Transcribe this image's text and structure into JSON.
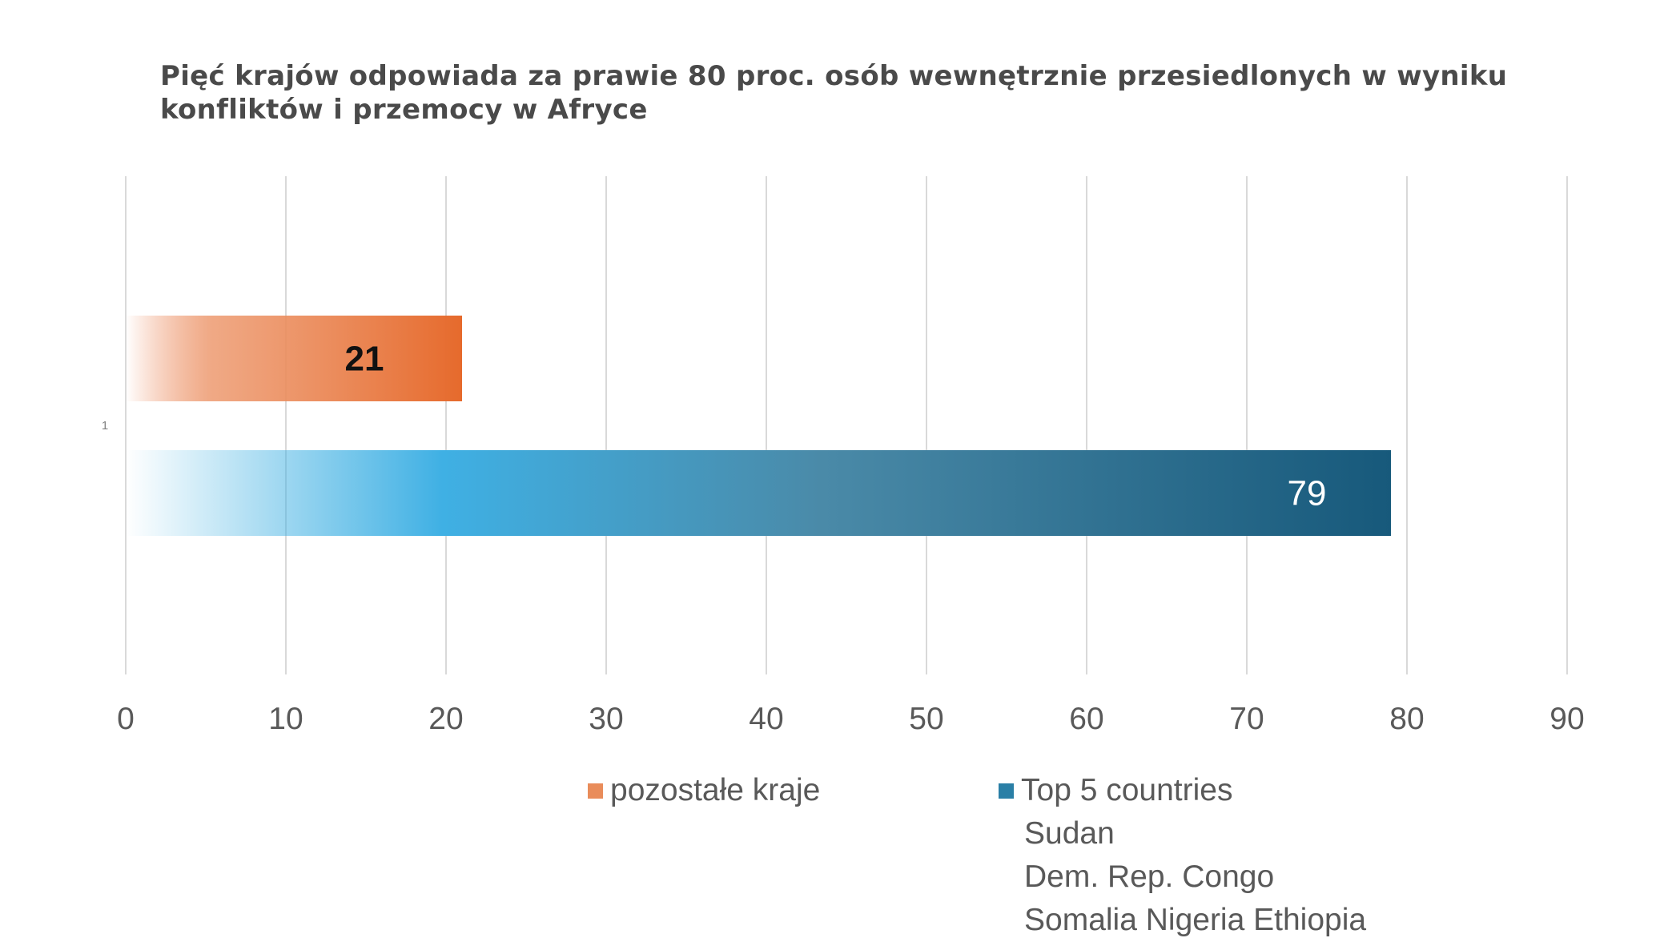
{
  "chart_data": {
    "type": "bar",
    "orientation": "horizontal",
    "title": "Pięć krajów odpowiada  za prawie 80 proc. osób wewnętrznie przesiedlonych w wyniku konfliktów i przemocy w Afryce",
    "category_label": "1",
    "categories": [
      "1"
    ],
    "series": [
      {
        "name": "pozostałe kraje",
        "values": [
          21
        ],
        "color": "#e8703a",
        "data_label": "21"
      },
      {
        "name": "Top 5 countries",
        "name_extra_lines": [
          "Sudan",
          "Dem. Rep. Congo",
          "Somalia Nigeria Ethiopia"
        ],
        "values": [
          79
        ],
        "color": "#1b6384",
        "data_label": "79"
      }
    ],
    "xlim": [
      0,
      90
    ],
    "xticks": [
      0,
      10,
      20,
      30,
      40,
      50,
      60,
      70,
      80,
      90
    ],
    "xtick_labels": [
      "0",
      "10",
      "20",
      "30",
      "40",
      "50",
      "60",
      "70",
      "80",
      "90"
    ],
    "grid": "vertical",
    "legend_position": "bottom"
  }
}
